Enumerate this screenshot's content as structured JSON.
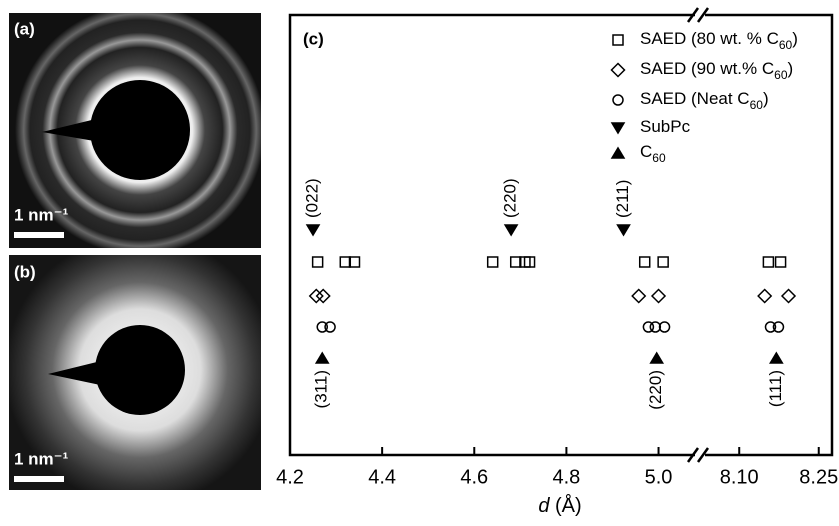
{
  "panels": [
    {
      "label": "(a)",
      "scale_bar": "1 nm⁻¹"
    },
    {
      "label": "(b)",
      "scale_bar": "1 nm⁻¹"
    }
  ],
  "chart_data": {
    "type": "scatter",
    "title": "(c)",
    "xlabel": "d (Å)",
    "xlim": [
      4.2,
      5.09
    ],
    "xticks": [
      4.2,
      4.4,
      4.6,
      4.8,
      {
        "value": 5.0,
        "label": "5.0"
      }
    ],
    "x2lim": [
      8.026,
      8.275
    ],
    "x2ticks": [
      {
        "value": 8.1,
        "label": "8.10"
      },
      8.25
    ],
    "series": [
      {
        "name": "SAED (80 wt. % C60)",
        "marker": "square",
        "color": "#000000",
        "x": [
          4.26,
          4.32,
          4.34,
          4.64,
          4.69,
          4.71,
          4.72,
          4.97,
          5.01,
          8.155,
          8.178
        ]
      },
      {
        "name": "SAED (90 wt.% C60)",
        "marker": "diamond",
        "color": "#000000",
        "x": [
          4.257,
          4.272,
          4.957,
          5.0,
          8.148,
          8.193
        ]
      },
      {
        "name": "SAED (Neat C60)",
        "marker": "circle",
        "color": "#000000",
        "x": [
          4.27,
          4.287,
          4.978,
          4.993,
          5.013,
          8.159,
          8.174
        ]
      },
      {
        "name": "SubPc",
        "marker": "triangle-down",
        "color": "#000000",
        "x": [
          4.25,
          4.68,
          4.924
        ],
        "labels": [
          "(022)",
          "(220)",
          "(211)"
        ]
      },
      {
        "name": "C60",
        "marker": "triangle-up",
        "color": "#000000",
        "x": [
          4.27,
          4.996,
          8.17
        ],
        "labels": [
          "(311)",
          "(220)",
          "(111)"
        ]
      }
    ]
  }
}
